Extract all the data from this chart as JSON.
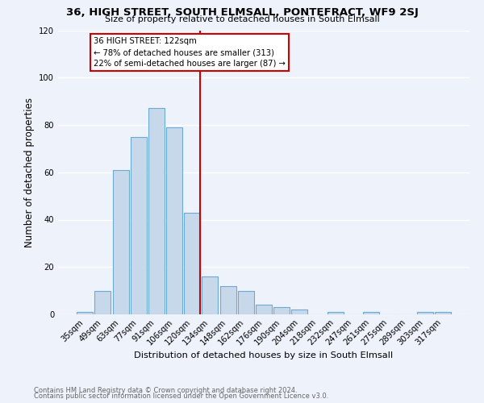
{
  "title": "36, HIGH STREET, SOUTH ELMSALL, PONTEFRACT, WF9 2SJ",
  "subtitle": "Size of property relative to detached houses in South Elmsall",
  "xlabel": "Distribution of detached houses by size in South Elmsall",
  "ylabel": "Number of detached properties",
  "bar_color": "#c8d8eb",
  "bar_edge_color": "#6aaad4",
  "categories": [
    "35sqm",
    "49sqm",
    "63sqm",
    "77sqm",
    "91sqm",
    "106sqm",
    "120sqm",
    "134sqm",
    "148sqm",
    "162sqm",
    "176sqm",
    "190sqm",
    "204sqm",
    "218sqm",
    "232sqm",
    "247sqm",
    "261sqm",
    "275sqm",
    "289sqm",
    "303sqm",
    "317sqm"
  ],
  "values": [
    1,
    10,
    61,
    75,
    87,
    79,
    43,
    16,
    12,
    10,
    4,
    3,
    2,
    0,
    1,
    0,
    1,
    0,
    0,
    1,
    1
  ],
  "vline_color": "#cc0000",
  "annotation_title": "36 HIGH STREET: 122sqm",
  "annotation_line1": "← 78% of detached houses are smaller (313)",
  "annotation_line2": "22% of semi-detached houses are larger (87) →",
  "annotation_box_color": "#ffffff",
  "annotation_box_edge": "#cc0000",
  "footer1": "Contains HM Land Registry data © Crown copyright and database right 2024.",
  "footer2": "Contains public sector information licensed under the Open Government Licence v3.0.",
  "ylim": [
    0,
    120
  ],
  "background_color": "#eef2fa",
  "grid_color": "#ffffff"
}
